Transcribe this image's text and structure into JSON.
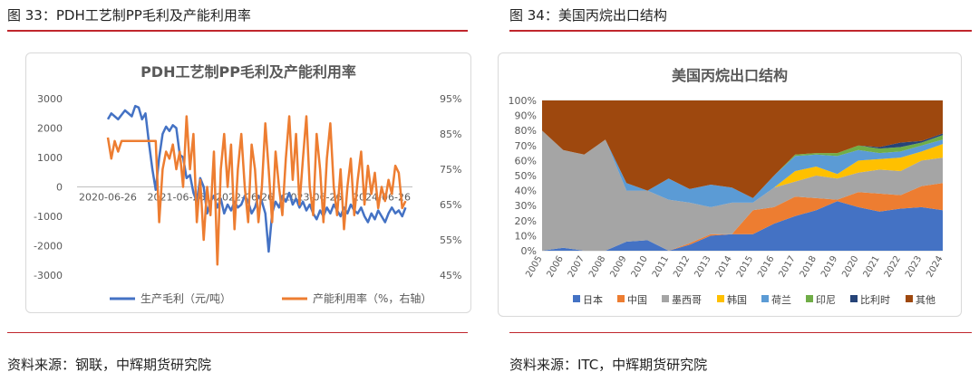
{
  "left": {
    "caption": "图 33：PDH工艺制PP毛利及产能利用率",
    "source": "资料来源：钢联，中辉期货研究院",
    "chart_data": {
      "type": "line",
      "title": "PDH工艺制PP毛利及产能利用率",
      "x_ticks": [
        "2020-06-26",
        "2021-06-26",
        "2022-06-26",
        "2023-06-26",
        "2024-06-26"
      ],
      "y_left_ticks": [
        "3000",
        "2000",
        "1000",
        "0",
        "-1000",
        "-2000",
        "-3000"
      ],
      "y_right_ticks": [
        "95%",
        "85%",
        "75%",
        "65%",
        "55%",
        "45%"
      ],
      "ylim_left": [
        -3000,
        3000
      ],
      "ylim_right": [
        45,
        95
      ],
      "xlim": [
        2020.0,
        2024.9
      ],
      "series": [
        {
          "name": "生产毛利（元/吨）",
          "axis": "left",
          "color": "#4472c4",
          "points": [
            [
              2020.45,
              2300
            ],
            [
              2020.5,
              2500
            ],
            [
              2020.6,
              2300
            ],
            [
              2020.7,
              2600
            ],
            [
              2020.8,
              2400
            ],
            [
              2020.85,
              2750
            ],
            [
              2020.9,
              2700
            ],
            [
              2020.95,
              2300
            ],
            [
              2021.0,
              2500
            ],
            [
              2021.05,
              1500
            ],
            [
              2021.1,
              600
            ],
            [
              2021.15,
              -100
            ],
            [
              2021.2,
              1000
            ],
            [
              2021.25,
              1800
            ],
            [
              2021.3,
              2050
            ],
            [
              2021.35,
              1900
            ],
            [
              2021.4,
              2100
            ],
            [
              2021.45,
              2000
            ],
            [
              2021.5,
              1100
            ],
            [
              2021.55,
              1000
            ],
            [
              2021.6,
              300
            ],
            [
              2021.65,
              400
            ],
            [
              2021.7,
              -200
            ],
            [
              2021.75,
              -500
            ],
            [
              2021.8,
              300
            ],
            [
              2021.85,
              0
            ],
            [
              2021.9,
              -900
            ],
            [
              2021.95,
              -500
            ],
            [
              2022.0,
              -300
            ],
            [
              2022.05,
              -700
            ],
            [
              2022.1,
              -400
            ],
            [
              2022.15,
              -900
            ],
            [
              2022.2,
              -600
            ],
            [
              2022.25,
              -800
            ],
            [
              2022.3,
              -500
            ],
            [
              2022.35,
              -700
            ],
            [
              2022.4,
              -600
            ],
            [
              2022.45,
              -300
            ],
            [
              2022.5,
              -500
            ],
            [
              2022.55,
              -900
            ],
            [
              2022.6,
              -700
            ],
            [
              2022.65,
              -300
            ],
            [
              2022.7,
              -500
            ],
            [
              2022.75,
              -900
            ],
            [
              2022.8,
              -2200
            ],
            [
              2022.85,
              -900
            ],
            [
              2022.9,
              -500
            ],
            [
              2022.95,
              -700
            ],
            [
              2023.0,
              -300
            ],
            [
              2023.05,
              -500
            ],
            [
              2023.1,
              -200
            ],
            [
              2023.15,
              -600
            ],
            [
              2023.2,
              -400
            ],
            [
              2023.25,
              -700
            ],
            [
              2023.3,
              -500
            ],
            [
              2023.35,
              -800
            ],
            [
              2023.4,
              -600
            ],
            [
              2023.45,
              -900
            ],
            [
              2023.5,
              -1100
            ],
            [
              2023.55,
              -800
            ],
            [
              2023.6,
              -1000
            ],
            [
              2023.65,
              -700
            ],
            [
              2023.7,
              -900
            ],
            [
              2023.75,
              -600
            ],
            [
              2023.8,
              -800
            ],
            [
              2023.85,
              -1000
            ],
            [
              2023.9,
              -700
            ],
            [
              2023.95,
              -900
            ],
            [
              2024.0,
              -600
            ],
            [
              2024.05,
              -800
            ],
            [
              2024.1,
              -900
            ],
            [
              2024.15,
              -700
            ],
            [
              2024.2,
              -1000
            ],
            [
              2024.25,
              -1200
            ],
            [
              2024.3,
              -900
            ],
            [
              2024.35,
              -1100
            ],
            [
              2024.4,
              -800
            ],
            [
              2024.45,
              -1000
            ],
            [
              2024.5,
              -1200
            ],
            [
              2024.55,
              -900
            ],
            [
              2024.6,
              -700
            ],
            [
              2024.65,
              -900
            ],
            [
              2024.7,
              -800
            ],
            [
              2024.75,
              -1000
            ],
            [
              2024.8,
              -700
            ]
          ]
        },
        {
          "name": "产能利用率（%，右轴）",
          "axis": "right",
          "color": "#ed7d31",
          "points": [
            [
              2020.45,
              84
            ],
            [
              2020.5,
              78
            ],
            [
              2020.55,
              83
            ],
            [
              2020.6,
              80
            ],
            [
              2020.65,
              83
            ],
            [
              2020.7,
              83
            ],
            [
              2020.8,
              83
            ],
            [
              2020.9,
              83
            ],
            [
              2021.0,
              83
            ],
            [
              2021.1,
              83
            ],
            [
              2021.15,
              83
            ],
            [
              2021.2,
              60
            ],
            [
              2021.25,
              75
            ],
            [
              2021.3,
              80
            ],
            [
              2021.35,
              78
            ],
            [
              2021.4,
              82
            ],
            [
              2021.45,
              75
            ],
            [
              2021.5,
              80
            ],
            [
              2021.55,
              70
            ],
            [
              2021.6,
              90
            ],
            [
              2021.65,
              75
            ],
            [
              2021.7,
              85
            ],
            [
              2021.75,
              60
            ],
            [
              2021.8,
              72
            ],
            [
              2021.85,
              55
            ],
            [
              2021.9,
              70
            ],
            [
              2021.95,
              62
            ],
            [
              2022.0,
              80
            ],
            [
              2022.05,
              48
            ],
            [
              2022.1,
              75
            ],
            [
              2022.15,
              85
            ],
            [
              2022.2,
              70
            ],
            [
              2022.25,
              82
            ],
            [
              2022.3,
              58
            ],
            [
              2022.35,
              75
            ],
            [
              2022.4,
              85
            ],
            [
              2022.45,
              70
            ],
            [
              2022.5,
              60
            ],
            [
              2022.55,
              82
            ],
            [
              2022.6,
              75
            ],
            [
              2022.65,
              60
            ],
            [
              2022.7,
              70
            ],
            [
              2022.75,
              88
            ],
            [
              2022.8,
              75
            ],
            [
              2022.85,
              60
            ],
            [
              2022.9,
              80
            ],
            [
              2022.95,
              70
            ],
            [
              2023.0,
              62
            ],
            [
              2023.05,
              78
            ],
            [
              2023.1,
              90
            ],
            [
              2023.15,
              72
            ],
            [
              2023.2,
              85
            ],
            [
              2023.25,
              65
            ],
            [
              2023.3,
              78
            ],
            [
              2023.35,
              90
            ],
            [
              2023.4,
              70
            ],
            [
              2023.45,
              62
            ],
            [
              2023.5,
              85
            ],
            [
              2023.55,
              75
            ],
            [
              2023.6,
              60
            ],
            [
              2023.65,
              78
            ],
            [
              2023.7,
              88
            ],
            [
              2023.75,
              70
            ],
            [
              2023.8,
              62
            ],
            [
              2023.85,
              75
            ],
            [
              2023.9,
              58
            ],
            [
              2023.95,
              70
            ],
            [
              2024.0,
              78
            ],
            [
              2024.05,
              62
            ],
            [
              2024.1,
              72
            ],
            [
              2024.15,
              80
            ],
            [
              2024.2,
              65
            ],
            [
              2024.25,
              76
            ],
            [
              2024.3,
              68
            ],
            [
              2024.35,
              74
            ],
            [
              2024.4,
              64
            ],
            [
              2024.45,
              70
            ],
            [
              2024.5,
              66
            ],
            [
              2024.55,
              72
            ],
            [
              2024.6,
              68
            ],
            [
              2024.65,
              76
            ],
            [
              2024.7,
              74
            ],
            [
              2024.75,
              64
            ],
            [
              2024.8,
              66
            ]
          ]
        }
      ],
      "legend": "bottom",
      "grid": false
    }
  },
  "right": {
    "caption": "图 34：美国丙烷出口结构",
    "source": "资料来源：ITC，中辉期货研究院",
    "chart_data": {
      "type": "area",
      "stacked": true,
      "percent": true,
      "title": "美国丙烷出口结构",
      "categories": [
        "2005",
        "2006",
        "2007",
        "2008",
        "2009",
        "2010",
        "2011",
        "2012",
        "2013",
        "2014",
        "2015",
        "2016",
        "2017",
        "2018",
        "2019",
        "2020",
        "2021",
        "2022",
        "2023",
        "2024"
      ],
      "y_ticks": [
        "100%",
        "90%",
        "80%",
        "70%",
        "60%",
        "50%",
        "40%",
        "30%",
        "20%",
        "10%",
        "0%"
      ],
      "ylim": [
        0,
        100
      ],
      "grid": true,
      "legend": "bottom",
      "series": [
        {
          "name": "日本",
          "color": "#4472c4",
          "values": [
            0,
            2,
            0,
            0,
            6,
            7,
            0,
            4,
            10,
            11,
            11,
            18,
            23,
            27,
            33,
            29,
            26,
            28,
            29,
            27
          ]
        },
        {
          "name": "中国",
          "color": "#ed7d31",
          "values": [
            0,
            0,
            0,
            0,
            0,
            0,
            0,
            1,
            1,
            0,
            16,
            11,
            13,
            8,
            1,
            10,
            12,
            9,
            14,
            18
          ]
        },
        {
          "name": "墨西哥",
          "color": "#a5a5a5",
          "values": [
            80,
            65,
            64,
            74,
            34,
            33,
            34,
            27,
            18,
            21,
            5,
            13,
            10,
            15,
            14,
            13,
            16,
            16,
            17,
            17
          ]
        },
        {
          "name": "韩国",
          "color": "#ffc000",
          "values": [
            0,
            0,
            0,
            0,
            0,
            0,
            0,
            0,
            0,
            0,
            0,
            0,
            7,
            6,
            3,
            8,
            7,
            9,
            6,
            9
          ]
        },
        {
          "name": "荷兰",
          "color": "#5b9bd5",
          "values": [
            0,
            0,
            0,
            0,
            5,
            0,
            14,
            9,
            15,
            10,
            3,
            8,
            10,
            8,
            12,
            7,
            4,
            4,
            4,
            3
          ]
        },
        {
          "name": "印尼",
          "color": "#70ad47",
          "values": [
            0,
            0,
            0,
            0,
            0,
            0,
            0,
            0,
            0,
            0,
            0,
            0,
            1,
            1,
            2,
            3,
            3,
            3,
            2,
            3
          ]
        },
        {
          "name": "比利时",
          "color": "#264478",
          "values": [
            0,
            0,
            0,
            0,
            0,
            0,
            0,
            0,
            0,
            0,
            0,
            0,
            0,
            0,
            0,
            0,
            1,
            3,
            1,
            1
          ]
        },
        {
          "name": "其他",
          "color": "#9e480e",
          "values": [
            20,
            33,
            36,
            26,
            55,
            60,
            52,
            59,
            56,
            58,
            65,
            50,
            36,
            35,
            35,
            30,
            31,
            28,
            27,
            22
          ]
        }
      ]
    }
  }
}
